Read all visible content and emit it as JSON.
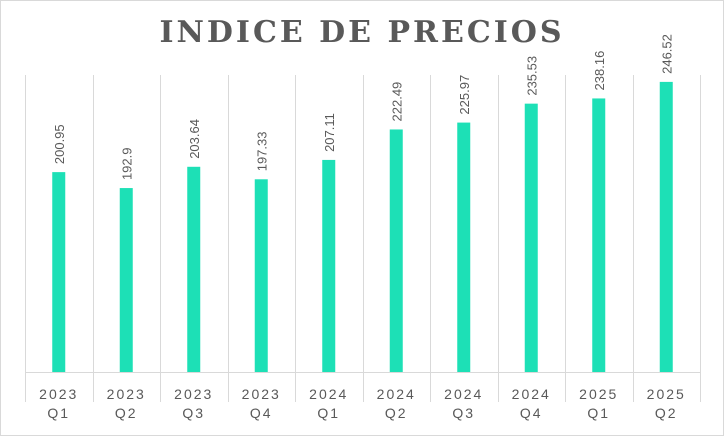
{
  "chart_data": {
    "type": "bar",
    "title": "INDICE DE PRECIOS",
    "categories": [
      [
        "2023",
        "Q1"
      ],
      [
        "2023",
        "Q2"
      ],
      [
        "2023",
        "Q3"
      ],
      [
        "2023",
        "Q4"
      ],
      [
        "2024",
        "Q1"
      ],
      [
        "2024",
        "Q2"
      ],
      [
        "2024",
        "Q3"
      ],
      [
        "2024",
        "Q4"
      ],
      [
        "2025",
        "Q1"
      ],
      [
        "2025",
        "Q2"
      ]
    ],
    "values": [
      200.95,
      192.9,
      203.64,
      197.33,
      207.11,
      222.49,
      225.97,
      235.53,
      238.16,
      246.52
    ],
    "value_labels": [
      "200.95",
      "192.9",
      "203.64",
      "197.33",
      "207.11",
      "222.49",
      "225.97",
      "235.53",
      "238.16",
      "246.52"
    ],
    "ylim": [
      100,
      250
    ],
    "xlabel": "",
    "ylabel": "",
    "grid": "vertical-category-separators",
    "legend": "none",
    "bar_color": "#1de0b6",
    "label_color": "#595959",
    "grid_color": "#d9d9d9"
  }
}
